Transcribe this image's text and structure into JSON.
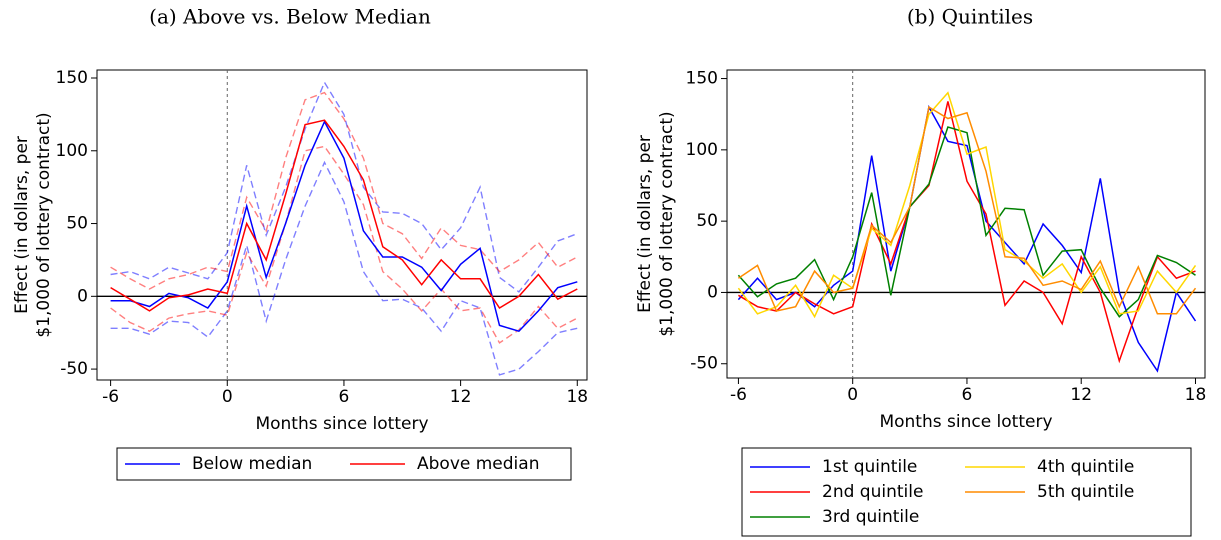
{
  "chart_data": [
    {
      "type": "line",
      "title": "(a) Above vs. Below Median",
      "xlabel": "Months since lottery",
      "ylabel": [
        "Effect (in dollars, per",
        "$1,000 of lottery contract)"
      ],
      "x": [
        -6,
        -5,
        -4,
        -3,
        -2,
        -1,
        0,
        1,
        2,
        3,
        4,
        5,
        6,
        7,
        8,
        9,
        10,
        11,
        12,
        13,
        14,
        15,
        16,
        17,
        18
      ],
      "series": [
        {
          "name": "Below median",
          "color": "#0000ff",
          "values": [
            -3,
            -3,
            -7,
            2,
            -1,
            -8,
            10,
            62,
            13,
            50,
            90,
            120,
            95,
            45,
            27,
            27,
            20,
            4,
            22,
            33,
            -20,
            -24,
            -10,
            6,
            10
          ],
          "ci_upper": [
            15,
            17,
            12,
            20,
            16,
            12,
            30,
            90,
            42,
            75,
            115,
            147,
            125,
            75,
            58,
            57,
            50,
            32,
            47,
            75,
            13,
            3,
            20,
            38,
            43
          ],
          "ci_lower": [
            -22,
            -22,
            -26,
            -17,
            -18,
            -28,
            -10,
            35,
            -17,
            25,
            62,
            92,
            65,
            17,
            -3,
            -2,
            -8,
            -24,
            -3,
            -8,
            -54,
            -50,
            -38,
            -25,
            -22
          ]
        },
        {
          "name": "Above median",
          "color": "#ff0000",
          "values": [
            6,
            -2,
            -10,
            -1,
            1,
            5,
            2,
            50,
            25,
            70,
            118,
            121,
            103,
            80,
            34,
            25,
            8,
            25,
            12,
            12,
            -8,
            0,
            15,
            -2,
            5
          ],
          "ci_upper": [
            20,
            12,
            5,
            12,
            15,
            20,
            17,
            68,
            45,
            95,
            135,
            140,
            122,
            95,
            50,
            43,
            26,
            47,
            35,
            32,
            17,
            25,
            37,
            20,
            27
          ],
          "ci_lower": [
            -8,
            -18,
            -24,
            -15,
            -12,
            -10,
            -13,
            30,
            7,
            50,
            100,
            103,
            84,
            63,
            17,
            5,
            -10,
            5,
            -10,
            -8,
            -32,
            -23,
            -7,
            -22,
            -15
          ]
        }
      ],
      "xlim": [
        -6.7,
        18.5
      ],
      "ylim": [
        -57.5,
        155.5
      ],
      "xticks": [
        -6,
        0,
        6,
        12,
        18
      ],
      "yticks": [
        -50,
        0,
        50,
        100,
        150
      ],
      "vline": 0,
      "hline": 0,
      "legend_columns": 2
    },
    {
      "type": "line",
      "title": "(b) Quintiles",
      "xlabel": "Months since lottery",
      "ylabel": [
        "Effect (in dollars, per",
        "$1,000 of lottery contract)"
      ],
      "x": [
        -6,
        -5,
        -4,
        -3,
        -2,
        -1,
        0,
        1,
        2,
        3,
        4,
        5,
        6,
        7,
        8,
        9,
        10,
        11,
        12,
        13,
        14,
        15,
        16,
        17,
        18
      ],
      "series": [
        {
          "name": "1st quintile",
          "color": "#0000ff",
          "values": [
            -5,
            10,
            -5,
            0,
            -10,
            5,
            15,
            96,
            15,
            60,
            130,
            106,
            103,
            50,
            35,
            20,
            48,
            33,
            14,
            80,
            0,
            -35,
            -55,
            0,
            -20
          ]
        },
        {
          "name": "2nd quintile",
          "color": "#ff0000",
          "values": [
            -2,
            -10,
            -13,
            0,
            -8,
            -15,
            -10,
            48,
            20,
            60,
            75,
            134,
            78,
            55,
            -9,
            8,
            0,
            -22,
            25,
            0,
            -48,
            -10,
            25,
            10,
            15
          ]
        },
        {
          "name": "3rd quintile",
          "color": "#008000",
          "values": [
            12,
            -3,
            6,
            10,
            23,
            -5,
            25,
            70,
            -2,
            60,
            76,
            116,
            112,
            40,
            59,
            58,
            12,
            29,
            30,
            3,
            -17,
            -5,
            26,
            21,
            12
          ]
        },
        {
          "name": "4th quintile",
          "color": "#ffd700",
          "values": [
            3,
            -15,
            -10,
            5,
            -17,
            12,
            3,
            45,
            33,
            75,
            125,
            140,
            97,
            102,
            30,
            22,
            10,
            20,
            0,
            18,
            -15,
            -13,
            15,
            0,
            19
          ]
        },
        {
          "name": "5th quintile",
          "color": "#ff8c00",
          "values": [
            10,
            19,
            -13,
            -10,
            15,
            0,
            3,
            47,
            35,
            60,
            130,
            122,
            126,
            85,
            25,
            24,
            5,
            8,
            2,
            22,
            -10,
            18,
            -15,
            -15,
            3
          ]
        }
      ],
      "xlim": [
        -6.6,
        18.5
      ],
      "ylim": [
        -60,
        156
      ],
      "xticks": [
        -6,
        0,
        6,
        12,
        18
      ],
      "yticks": [
        -50,
        0,
        50,
        100,
        150
      ],
      "vline": 0,
      "hline": 0,
      "legend_columns": 2
    }
  ]
}
